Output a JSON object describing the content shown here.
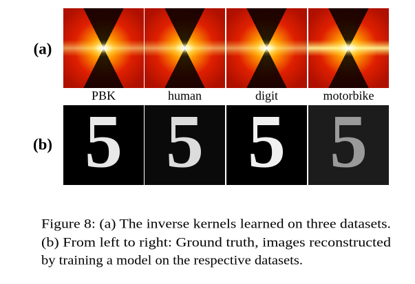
{
  "figure": {
    "rows": [
      {
        "label": "(a)"
      },
      {
        "label": "(b)",
        "glyphs": [
          "5",
          "5",
          "5",
          "5"
        ]
      }
    ],
    "column_labels": [
      "PBK",
      "human",
      "digit",
      "motorbike"
    ],
    "caption": {
      "lines": [
        "Figure 8: (a) The inverse kernels learned on three datasets.",
        "(b) From left to right: Ground truth, images reconstructed",
        "by training a model on the respective datasets."
      ]
    }
  }
}
